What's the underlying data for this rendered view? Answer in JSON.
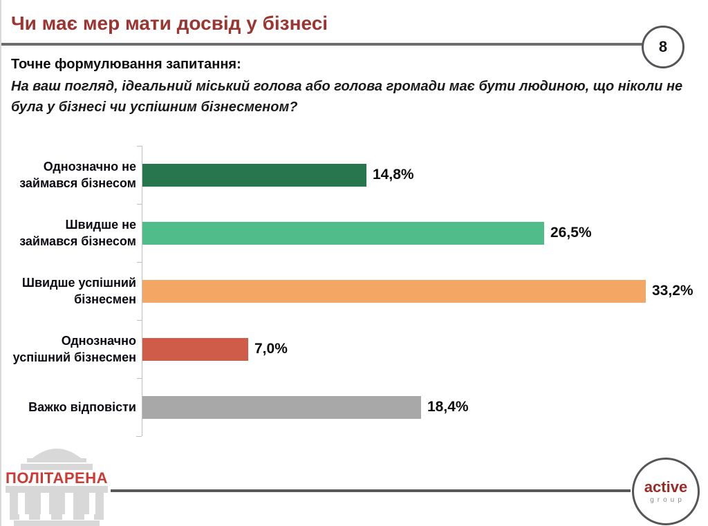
{
  "slide": {
    "title": "Чи має мер мати досвід у бізнесі",
    "page_number": "8",
    "question_label": "Точне формулювання запитання:",
    "question_text": "На ваш погляд, ідеальний міський голова або голова громади має бути людиною, що ніколи не була у бізнесі чи успішним бізнесменом?"
  },
  "chart_data": {
    "type": "bar",
    "orientation": "horizontal",
    "title": "",
    "xlabel": "",
    "ylabel": "",
    "xlim": [
      0,
      35
    ],
    "grid": false,
    "legend": false,
    "categories": [
      "Однозначно не займався бізнесом",
      "Швидше не займався бізнесом",
      "Швидше успішний бізнесмен",
      "Однозначно успішний бізнесмен",
      "Важко відповісти"
    ],
    "values": [
      14.8,
      26.5,
      33.2,
      7.0,
      18.4
    ],
    "value_labels": [
      "14,8%",
      "26,5%",
      "33,2%",
      "7,0%",
      "18,4%"
    ],
    "bar_colors": [
      "#27764e",
      "#4fbc8a",
      "#f2a765",
      "#cf5b49",
      "#a8a8a8"
    ]
  },
  "footer": {
    "left_logo_text": "ПОЛІТАРЕНА",
    "right_logo_line1": "active",
    "right_logo_line2": "group"
  },
  "colors": {
    "title_red": "#9c3432",
    "header_rule": "#6b6b70",
    "footer_rule": "#595959",
    "axis_gray": "#bfbfbf",
    "logo_red": "#cc3a33",
    "active_red": "#9c2b26",
    "building_gray": "#d8d8d8"
  }
}
